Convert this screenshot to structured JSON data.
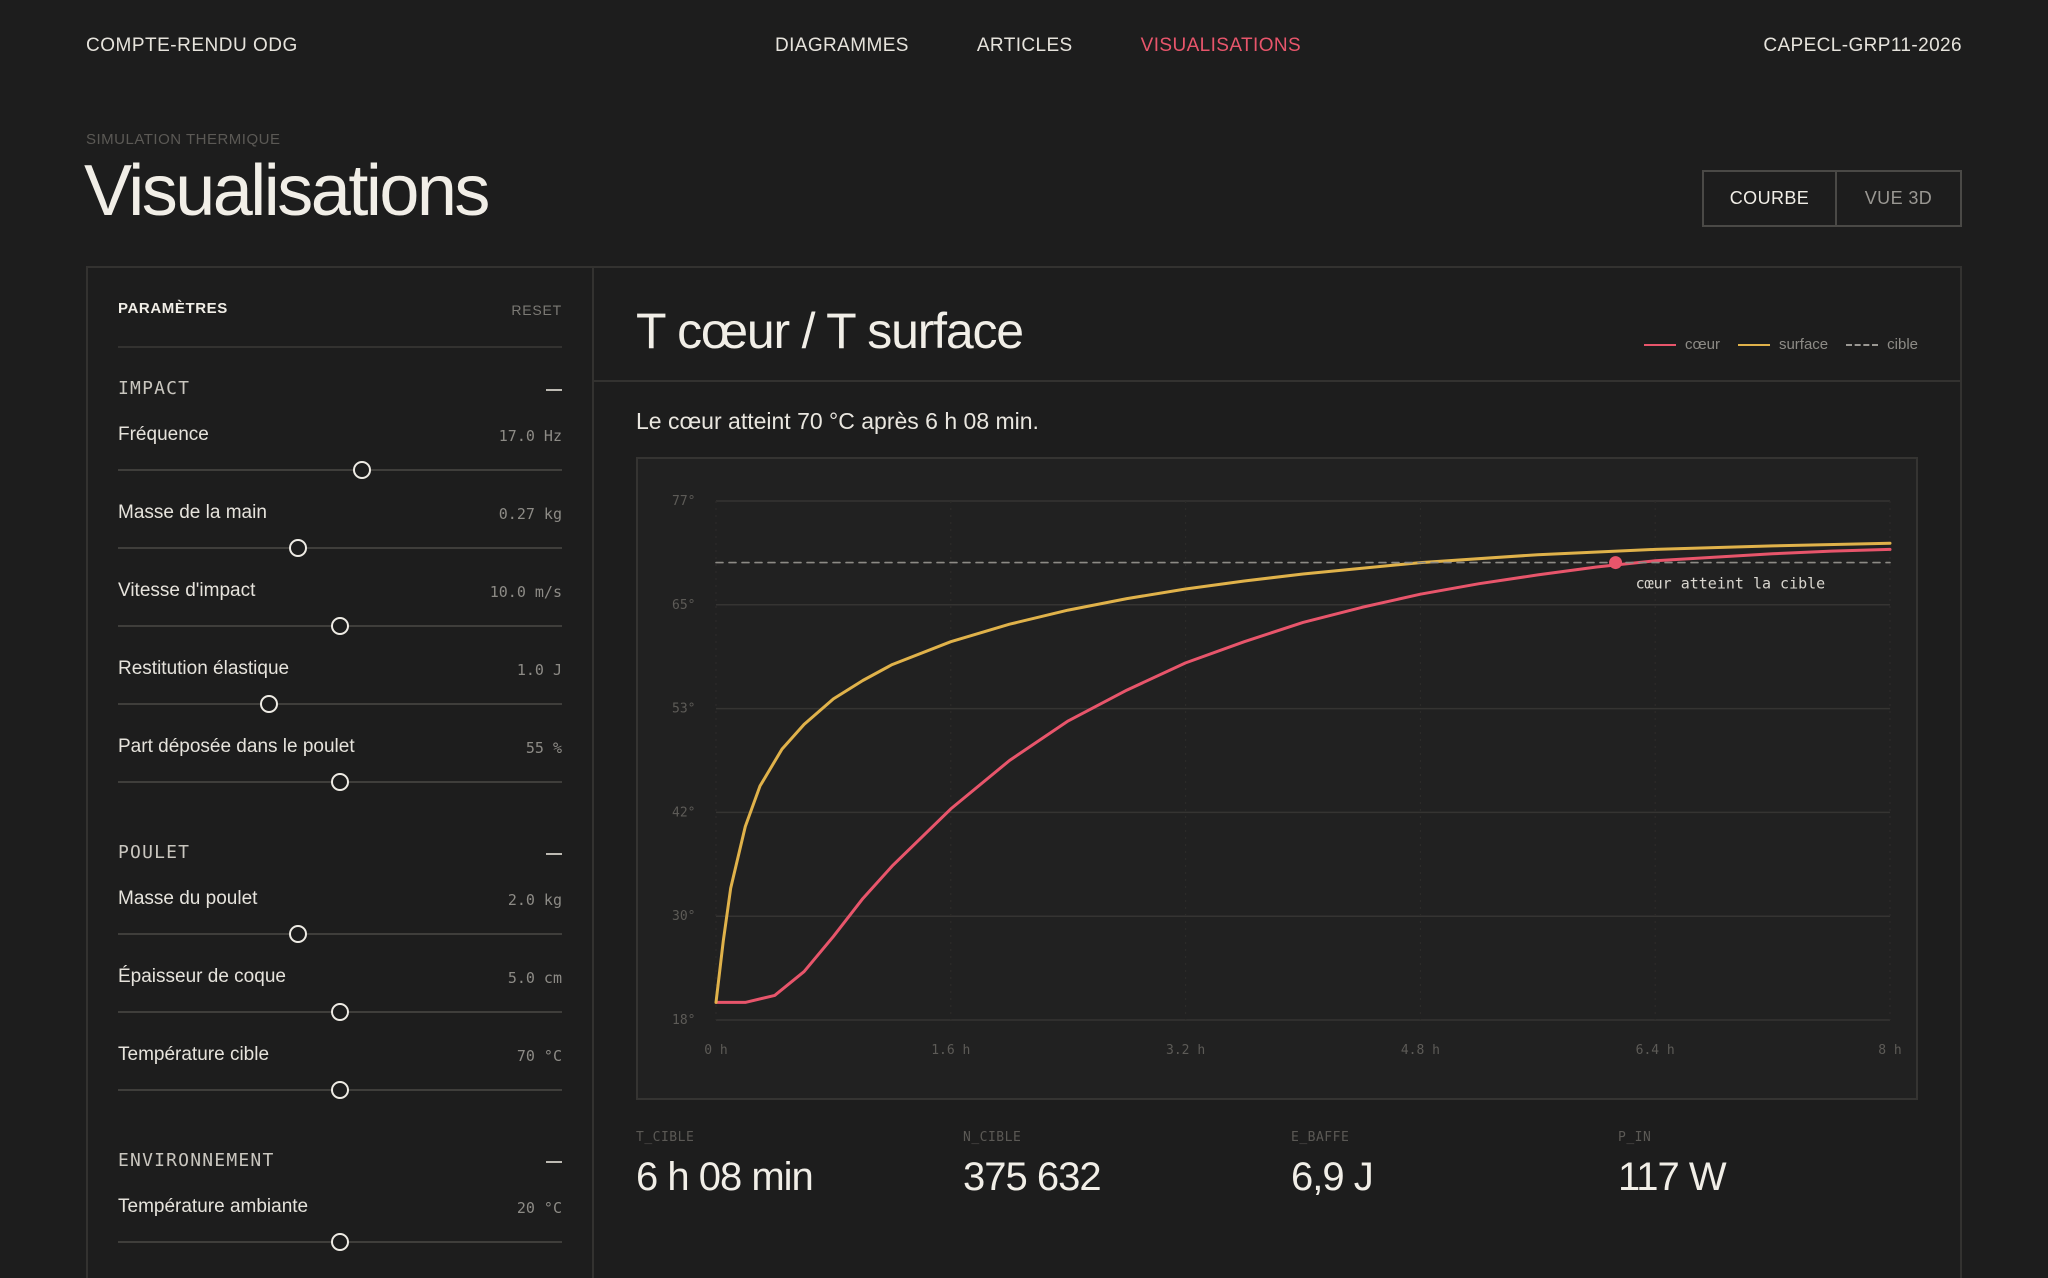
{
  "nav": {
    "brand": "COMPTE-RENDU ODG",
    "links": [
      "DIAGRAMMES",
      "ARTICLES",
      "VISUALISATIONS"
    ],
    "active": "VISUALISATIONS",
    "code": "CAPECL-GRP11-2026"
  },
  "header": {
    "eyebrow": "SIMULATION THERMIQUE",
    "title": "Visualisations",
    "toggle": {
      "curve": "COURBE",
      "view3d": "VUE 3D",
      "selected": "COURBE"
    }
  },
  "sidebar": {
    "title": "PARAMÈTRES",
    "reset": "RESET",
    "groups": [
      {
        "name": "IMPACT",
        "params": [
          {
            "label": "Fréquence",
            "value": "17.0 Hz",
            "level": 0.55
          },
          {
            "label": "Masse de la main",
            "value": "0.27 kg",
            "level": 0.405
          },
          {
            "label": "Vitesse d'impact",
            "value": "10.0 m/s",
            "level": 0.5
          },
          {
            "label": "Restitution élastique",
            "value": "1.0 J",
            "level": 0.34
          },
          {
            "label": "Part déposée dans le poulet",
            "value": "55 %",
            "level": 0.5
          }
        ]
      },
      {
        "name": "POULET",
        "params": [
          {
            "label": "Masse du poulet",
            "value": "2.0 kg",
            "level": 0.405
          },
          {
            "label": "Épaisseur de coque",
            "value": "5.0 cm",
            "level": 0.5
          },
          {
            "label": "Température cible",
            "value": "70 °C",
            "level": 0.5
          }
        ]
      },
      {
        "name": "ENVIRONNEMENT",
        "params": [
          {
            "label": "Température ambiante",
            "value": "20 °C",
            "level": 0.5
          }
        ]
      }
    ]
  },
  "main": {
    "chart_title": "T cœur / T surface",
    "legend": [
      "cœur",
      "surface",
      "cible"
    ],
    "summary": "Le cœur atteint 70 °C après 6 h 08 min.",
    "annotation": "cœur atteint la cible",
    "stats": [
      {
        "key": "T_CIBLE",
        "value": "6 h 08 min"
      },
      {
        "key": "N_CIBLE",
        "value": "375 632"
      },
      {
        "key": "E_BAFFE",
        "value": "6,9 J"
      },
      {
        "key": "P_IN",
        "value": "117 W"
      }
    ]
  },
  "colors": {
    "core": "#e8556b",
    "surface": "#e0b24a",
    "target": "#8d8b86",
    "accent": "#e8556b"
  },
  "chart_data": {
    "type": "line",
    "title": "T cœur / T surface",
    "x_unit": "h",
    "y_unit": "°",
    "xlim": [
      0,
      8
    ],
    "ylim": [
      18,
      77
    ],
    "x_ticks": [
      "0 h",
      "1.6 h",
      "3.2 h",
      "4.8 h",
      "6.4 h",
      "8 h"
    ],
    "y_ticks": [
      "18°",
      "30°",
      "42°",
      "53°",
      "65°",
      "77°"
    ],
    "grid": true,
    "legend_position": "top-right",
    "series": [
      {
        "name": "cœur",
        "color": "#e8556b",
        "x": [
          0,
          0.2,
          0.4,
          0.6,
          0.8,
          1.0,
          1.2,
          1.6,
          2.0,
          2.4,
          2.8,
          3.2,
          3.6,
          4.0,
          4.4,
          4.8,
          5.2,
          5.6,
          6.0,
          6.4,
          6.8,
          7.2,
          7.6,
          8.0
        ],
        "y": [
          20,
          20,
          20.8,
          23.5,
          27.5,
          31.8,
          35.5,
          42,
          47.5,
          52,
          55.5,
          58.6,
          61,
          63.2,
          64.9,
          66.4,
          67.6,
          68.6,
          69.5,
          70.2,
          70.6,
          71.0,
          71.3,
          71.5
        ]
      },
      {
        "name": "surface",
        "color": "#e0b24a",
        "x": [
          0,
          0.05,
          0.1,
          0.2,
          0.3,
          0.45,
          0.6,
          0.8,
          1.0,
          1.2,
          1.6,
          2.0,
          2.4,
          2.8,
          3.2,
          3.6,
          4.0,
          4.8,
          5.6,
          6.4,
          7.2,
          8.0
        ],
        "y": [
          20,
          27,
          33,
          40,
          44.6,
          48.8,
          51.6,
          54.5,
          56.6,
          58.4,
          61.0,
          63.0,
          64.6,
          65.9,
          67.0,
          67.9,
          68.7,
          70.0,
          70.9,
          71.5,
          71.9,
          72.2
        ]
      },
      {
        "name": "cible",
        "color": "#8d8b86",
        "x": [
          0,
          8
        ],
        "y": [
          70,
          70
        ]
      }
    ],
    "annotations": [
      {
        "text": "cœur atteint la cible",
        "x": 6.13,
        "y": 70
      }
    ]
  }
}
